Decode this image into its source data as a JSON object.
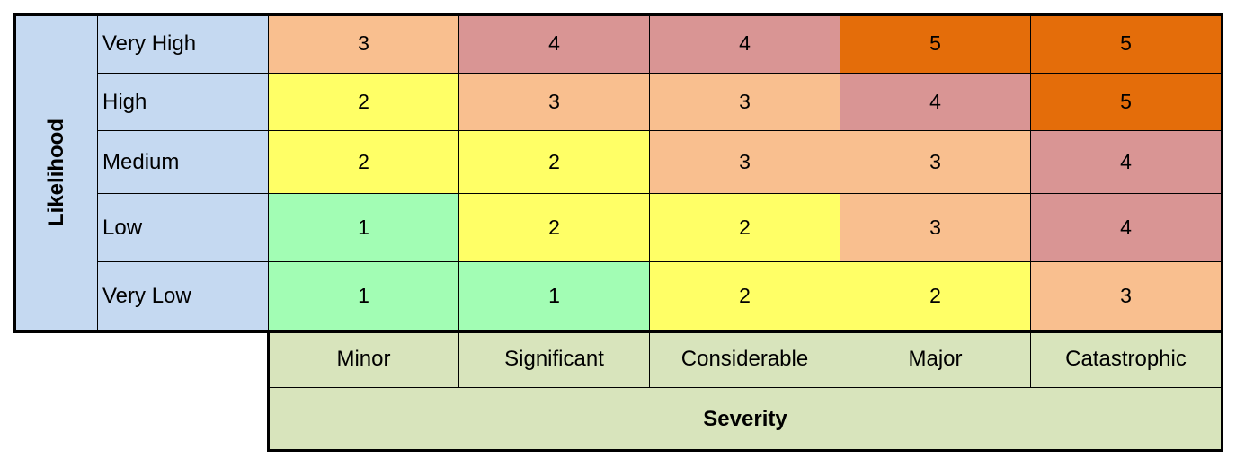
{
  "matrix": {
    "y_axis_title": "Likelihood",
    "x_axis_title": "Severity",
    "rows": [
      {
        "label": "Very High",
        "scores": [
          3,
          4,
          4,
          5,
          5
        ]
      },
      {
        "label": "High",
        "scores": [
          2,
          3,
          3,
          4,
          5
        ]
      },
      {
        "label": "Medium",
        "scores": [
          2,
          2,
          3,
          3,
          4
        ]
      },
      {
        "label": "Low",
        "scores": [
          1,
          2,
          2,
          3,
          4
        ]
      },
      {
        "label": "Very Low",
        "scores": [
          1,
          1,
          2,
          2,
          3
        ]
      }
    ],
    "columns": [
      "Minor",
      "Significant",
      "Considerable",
      "Major",
      "Catastrophic"
    ],
    "score_colors": {
      "1": "#a2fdb4",
      "2": "#ffff66",
      "3": "#f9bf8f",
      "4": "#d99594",
      "5": "#e46d0a"
    },
    "label_colors": {
      "likelihood": "#c5d9f1",
      "severity": "#d8e4bc"
    }
  }
}
